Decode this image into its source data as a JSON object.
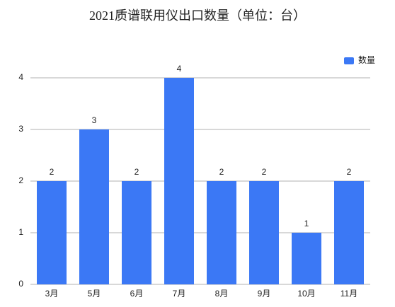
{
  "chart_data": {
    "type": "bar",
    "title": "2021质谱联用仪出口数量（单位：台）",
    "categories": [
      "3月",
      "5月",
      "6月",
      "7月",
      "8月",
      "9月",
      "10月",
      "11月"
    ],
    "series": [
      {
        "name": "数量",
        "color": "#3b78f5",
        "values": [
          2,
          3,
          2,
          4,
          2,
          2,
          1,
          2
        ]
      }
    ],
    "ylim": [
      0,
      4
    ],
    "yticks": [
      0,
      1,
      2,
      3,
      4
    ],
    "grid": true,
    "legend": "top-right",
    "data_labels": true
  }
}
